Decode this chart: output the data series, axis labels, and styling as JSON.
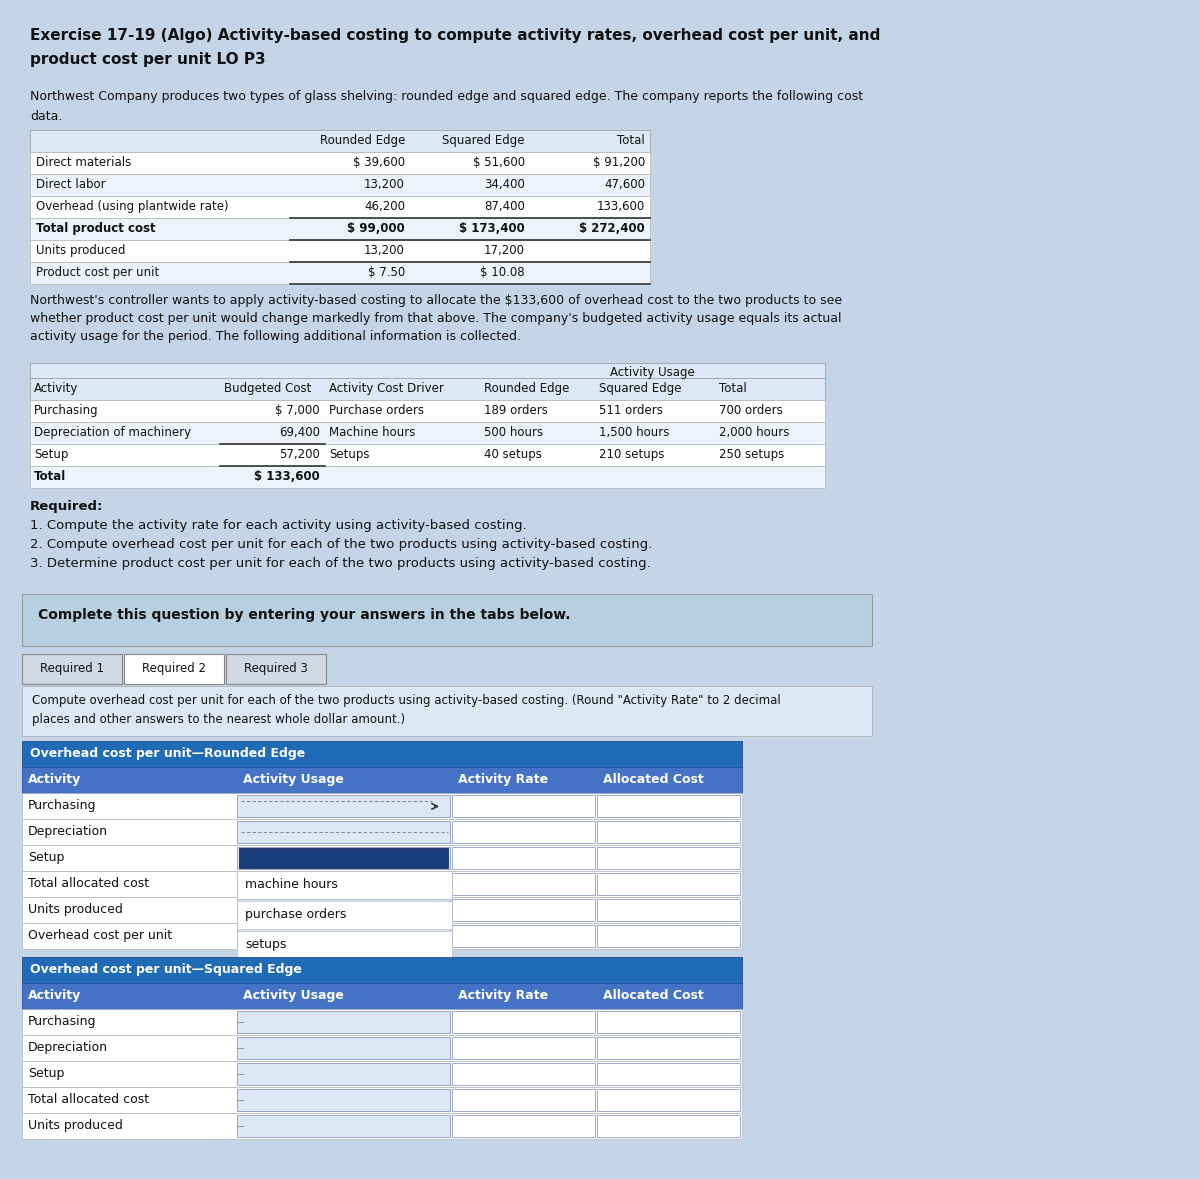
{
  "title_line1": "Exercise 17-19 (Algo) Activity-based costing to compute activity rates, overhead cost per unit, and",
  "title_line2": "product cost per unit LO P3",
  "intro_line1": "Northwest Company produces two types of glass shelving: rounded edge and squared edge. The company reports the following cost",
  "intro_line2": "data.",
  "cost_table": {
    "col_headers": [
      "",
      "Rounded Edge",
      "Squared Edge",
      "Total"
    ],
    "rows": [
      [
        "Direct materials",
        "$ 39,600",
        "$ 51,600",
        "$ 91,200"
      ],
      [
        "Direct labor",
        "13,200",
        "34,400",
        "47,600"
      ],
      [
        "Overhead (using plantwide rate)",
        "46,200",
        "87,400",
        "133,600"
      ],
      [
        "Total product cost",
        "$ 99,000",
        "$ 173,400",
        "$ 272,400"
      ],
      [
        "Units produced",
        "13,200",
        "17,200",
        ""
      ],
      [
        "Product cost per unit",
        "$ 7.50",
        "$ 10.08",
        ""
      ]
    ]
  },
  "middle_text_lines": [
    "Northwest's controller wants to apply activity-based costing to allocate the $133,600 of overhead cost to the two products to see",
    "whether product cost per unit would change markedly from that above. The company's budgeted activity usage equals its actual",
    "activity usage for the period. The following additional information is collected."
  ],
  "activity_table": {
    "col_headers": [
      "Activity",
      "Budgeted Cost",
      "Activity Cost Driver",
      "Rounded Edge",
      "Squared Edge",
      "Total"
    ],
    "rows": [
      [
        "Purchasing",
        "$ 7,000",
        "Purchase orders",
        "189 orders",
        "511 orders",
        "700 orders"
      ],
      [
        "Depreciation of machinery",
        "69,400",
        "Machine hours",
        "500 hours",
        "1,500 hours",
        "2,000 hours"
      ],
      [
        "Setup",
        "57,200",
        "Setups",
        "40 setups",
        "210 setups",
        "250 setups"
      ],
      [
        "Total",
        "$ 133,600",
        "",
        "",
        "",
        ""
      ]
    ]
  },
  "required_lines": [
    "Required:",
    "1. Compute the activity rate for each activity using activity-based costing.",
    "2. Compute overhead cost per unit for each of the two products using activity-based costing.",
    "3. Determine product cost per unit for each of the two products using activity-based costing."
  ],
  "complete_text": "Complete this question by entering your answers in the tabs below.",
  "tabs": [
    "Required 1",
    "Required 2",
    "Required 3"
  ],
  "active_tab_idx": 1,
  "instruction_lines": [
    "Compute overhead cost per unit for each of the two products using activity-based costing. (Round \"Activity Rate\" to 2 decimal",
    "places and other answers to the nearest whole dollar amount.)"
  ],
  "rounded_header": "Overhead cost per unit—Rounded Edge",
  "rounded_col_headers": [
    "Activity",
    "Activity Usage",
    "Activity Rate",
    "Allocated Cost"
  ],
  "rounded_rows": [
    "Purchasing",
    "Depreciation",
    "Setup",
    "Total allocated cost",
    "Units produced",
    "Overhead cost per unit"
  ],
  "dropdown_items": [
    "machine hours",
    "purchase orders",
    "setups"
  ],
  "squared_header": "Overhead cost per unit—Squared Edge",
  "squared_col_headers": [
    "Activity",
    "Activity Usage",
    "Activity Rate",
    "Allocated Cost"
  ],
  "squared_rows": [
    "Purchasing",
    "Depreciation",
    "Setup",
    "Total allocated cost",
    "Units produced"
  ],
  "page_bg": "#c5d5e8",
  "table_bg": "#dce8f5",
  "white": "#ffffff",
  "blue_header": "#1f6bb5",
  "col_header_blue": "#4472c4",
  "activity_usage_header_bg": "#c5d5e8",
  "light_row": "#eef3fb",
  "cell_input_bg": "#dce8f5",
  "complete_box_bg": "#b8cfe0",
  "setup_cell_dark": "#1a3d7c",
  "tab_border": "#888888",
  "instruction_box_bg": "#dce8f5"
}
